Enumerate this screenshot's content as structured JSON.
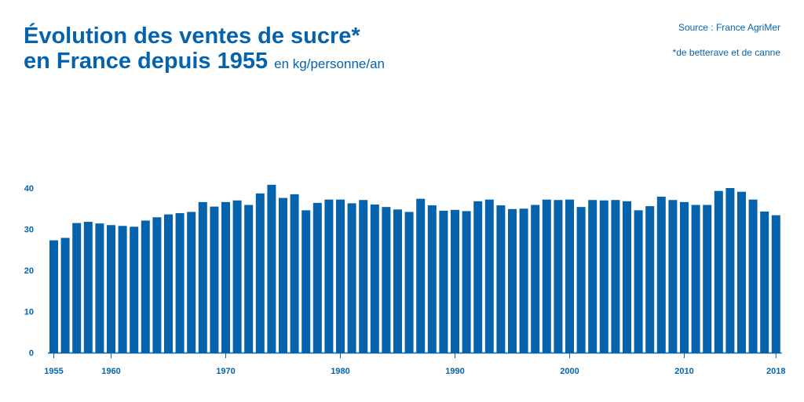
{
  "title": {
    "line1": "Évolution des ventes de sucre*",
    "line2": "en France depuis 1955",
    "unit": "en kg/personne/an"
  },
  "source": "Source : France AgriMer",
  "note": "*de betterave et de canne",
  "colors": {
    "bar": "#0563ad",
    "text": "#0563ad",
    "axis": "#0563ad"
  },
  "chart_data": {
    "type": "bar",
    "title": "Évolution des ventes de sucre* en France depuis 1955",
    "xlabel": "",
    "ylabel": "en kg/personne/an",
    "ylim": [
      0,
      42
    ],
    "grid": false,
    "yticks": [
      0,
      10,
      20,
      30,
      40
    ],
    "xticks": [
      1955,
      1960,
      1970,
      1980,
      1990,
      2000,
      2010,
      2018
    ],
    "categories": [
      1955,
      1956,
      1957,
      1958,
      1959,
      1960,
      1961,
      1962,
      1963,
      1964,
      1965,
      1966,
      1967,
      1968,
      1969,
      1970,
      1971,
      1972,
      1973,
      1974,
      1975,
      1976,
      1977,
      1978,
      1979,
      1980,
      1981,
      1982,
      1983,
      1984,
      1985,
      1986,
      1987,
      1988,
      1989,
      1990,
      1991,
      1992,
      1993,
      1994,
      1995,
      1996,
      1997,
      1998,
      1999,
      2000,
      2001,
      2002,
      2003,
      2004,
      2005,
      2006,
      2007,
      2008,
      2009,
      2010,
      2011,
      2012,
      2013,
      2014,
      2015,
      2016,
      2017,
      2018
    ],
    "values": [
      27.3,
      27.9,
      31.5,
      31.8,
      31.4,
      31.0,
      30.8,
      30.6,
      32.1,
      32.9,
      33.6,
      33.9,
      34.2,
      36.6,
      35.5,
      36.6,
      37.0,
      35.9,
      38.7,
      40.8,
      37.6,
      38.5,
      34.6,
      36.4,
      37.2,
      37.2,
      36.3,
      37.1,
      36.0,
      35.4,
      34.8,
      34.2,
      37.4,
      35.8,
      34.5,
      34.7,
      34.4,
      36.8,
      37.2,
      35.8,
      34.9,
      35.0,
      35.9,
      37.2,
      37.1,
      37.2,
      35.4,
      37.1,
      37.0,
      37.1,
      36.8,
      34.6,
      35.6,
      37.9,
      37.1,
      36.6,
      35.9,
      35.9,
      39.3,
      40.0,
      39.1,
      37.2,
      34.3,
      33.4
    ]
  }
}
